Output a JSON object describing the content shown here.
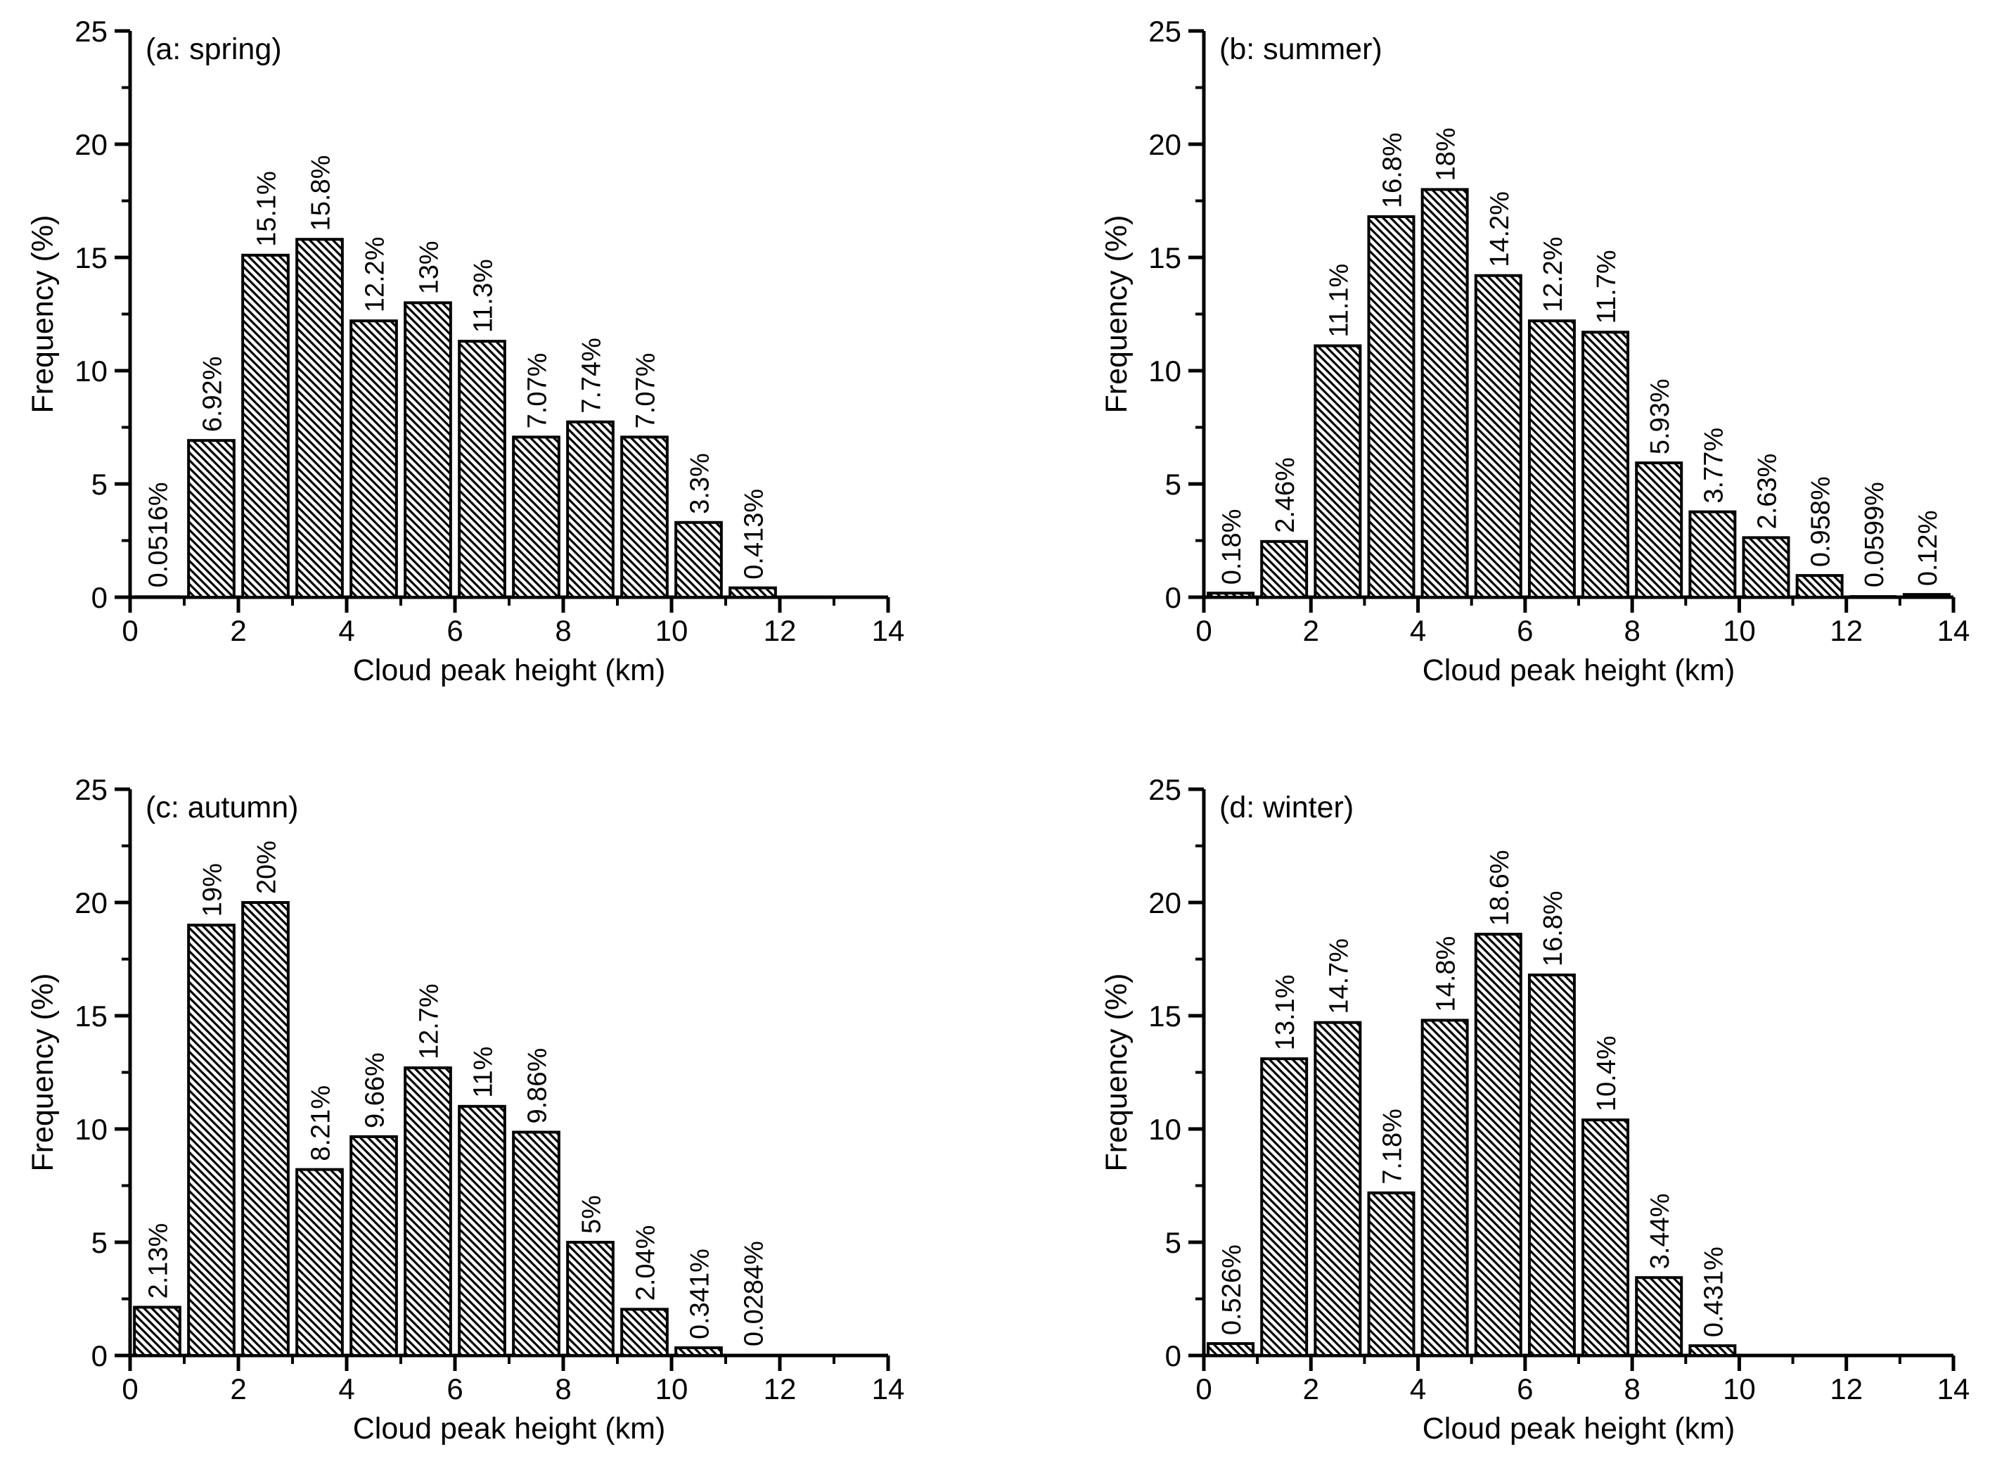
{
  "page": {
    "background": "#ffffff",
    "ink": "#000000",
    "bar_fill": "#ffffff",
    "bar_edge": "#000000",
    "hatch_style": "diagonal-backslash"
  },
  "chart_data": [
    {
      "id": "a",
      "type": "bar",
      "panel_label": "(a: spring)",
      "xlabel": "Cloud peak height (km)",
      "ylabel": "Frequency (%)",
      "xlim": [
        0,
        14
      ],
      "ylim": [
        0,
        25
      ],
      "x_major_ticks": [
        0,
        2,
        4,
        6,
        8,
        10,
        12,
        14
      ],
      "x_minor_ticks": [
        1,
        3,
        5,
        7,
        9,
        11,
        13
      ],
      "y_major_ticks": [
        0,
        5,
        10,
        15,
        20,
        25
      ],
      "y_minor_ticks": [
        2.5,
        7.5,
        12.5,
        17.5,
        22.5
      ],
      "grid": false,
      "legend": null,
      "bin_edges_km": [
        0,
        1,
        2,
        3,
        4,
        5,
        6,
        7,
        8,
        9,
        10,
        11,
        12
      ],
      "values": [
        0.0516,
        6.92,
        15.1,
        15.8,
        12.2,
        13,
        11.3,
        7.07,
        7.74,
        7.07,
        3.3,
        0.413
      ],
      "bar_labels": [
        "0.0516%",
        "6.92%",
        "15.1%",
        "15.8%",
        "12.2%",
        "13%",
        "11.3%",
        "7.07%",
        "7.74%",
        "7.07%",
        "3.3%",
        "0.413%"
      ]
    },
    {
      "id": "b",
      "type": "bar",
      "panel_label": "(b: summer)",
      "xlabel": "Cloud peak height (km)",
      "ylabel": "Frequency (%)",
      "xlim": [
        0,
        14
      ],
      "ylim": [
        0,
        25
      ],
      "x_major_ticks": [
        0,
        2,
        4,
        6,
        8,
        10,
        12,
        14
      ],
      "x_minor_ticks": [
        1,
        3,
        5,
        7,
        9,
        11,
        13
      ],
      "y_major_ticks": [
        0,
        5,
        10,
        15,
        20,
        25
      ],
      "y_minor_ticks": [
        2.5,
        7.5,
        12.5,
        17.5,
        22.5
      ],
      "grid": false,
      "legend": null,
      "bin_edges_km": [
        0,
        1,
        2,
        3,
        4,
        5,
        6,
        7,
        8,
        9,
        10,
        11,
        12,
        13,
        14
      ],
      "values": [
        0.18,
        2.46,
        11.1,
        16.8,
        18,
        14.2,
        12.2,
        11.7,
        5.93,
        3.77,
        2.63,
        0.958,
        0.0599,
        0.12
      ],
      "bar_labels": [
        "0.18%",
        "2.46%",
        "11.1%",
        "16.8%",
        "18%",
        "14.2%",
        "12.2%",
        "11.7%",
        "5.93%",
        "3.77%",
        "2.63%",
        "0.958%",
        "0.0599%",
        "0.12%"
      ]
    },
    {
      "id": "c",
      "type": "bar",
      "panel_label": "(c: autumn)",
      "xlabel": "Cloud peak height (km)",
      "ylabel": "Frequency (%)",
      "xlim": [
        0,
        14
      ],
      "ylim": [
        0,
        25
      ],
      "x_major_ticks": [
        0,
        2,
        4,
        6,
        8,
        10,
        12,
        14
      ],
      "x_minor_ticks": [
        1,
        3,
        5,
        7,
        9,
        11,
        13
      ],
      "y_major_ticks": [
        0,
        5,
        10,
        15,
        20,
        25
      ],
      "y_minor_ticks": [
        2.5,
        7.5,
        12.5,
        17.5,
        22.5
      ],
      "grid": false,
      "legend": null,
      "bin_edges_km": [
        0,
        1,
        2,
        3,
        4,
        5,
        6,
        7,
        8,
        9,
        10,
        11,
        12
      ],
      "values": [
        2.13,
        19,
        20,
        8.21,
        9.66,
        12.7,
        11,
        9.86,
        5,
        2.04,
        0.341,
        0.0284
      ],
      "bar_labels": [
        "2.13%",
        "19%",
        "20%",
        "8.21%",
        "9.66%",
        "12.7%",
        "11%",
        "9.86%",
        "5%",
        "2.04%",
        "0.341%",
        "0.0284%"
      ]
    },
    {
      "id": "d",
      "type": "bar",
      "panel_label": "(d: winter)",
      "xlabel": "Cloud peak height (km)",
      "ylabel": "Frequency (%)",
      "xlim": [
        0,
        14
      ],
      "ylim": [
        0,
        25
      ],
      "x_major_ticks": [
        0,
        2,
        4,
        6,
        8,
        10,
        12,
        14
      ],
      "x_minor_ticks": [
        1,
        3,
        5,
        7,
        9,
        11,
        13
      ],
      "y_major_ticks": [
        0,
        5,
        10,
        15,
        20,
        25
      ],
      "y_minor_ticks": [
        2.5,
        7.5,
        12.5,
        17.5,
        22.5
      ],
      "grid": false,
      "legend": null,
      "bin_edges_km": [
        0,
        1,
        2,
        3,
        4,
        5,
        6,
        7,
        8,
        9,
        10
      ],
      "values": [
        0.526,
        13.1,
        14.7,
        7.18,
        14.8,
        18.6,
        16.8,
        10.4,
        3.44,
        0.431
      ],
      "bar_labels": [
        "0.526%",
        "13.1%",
        "14.7%",
        "7.18%",
        "14.8%",
        "18.6%",
        "16.8%",
        "10.4%",
        "3.44%",
        "0.431%"
      ]
    }
  ]
}
